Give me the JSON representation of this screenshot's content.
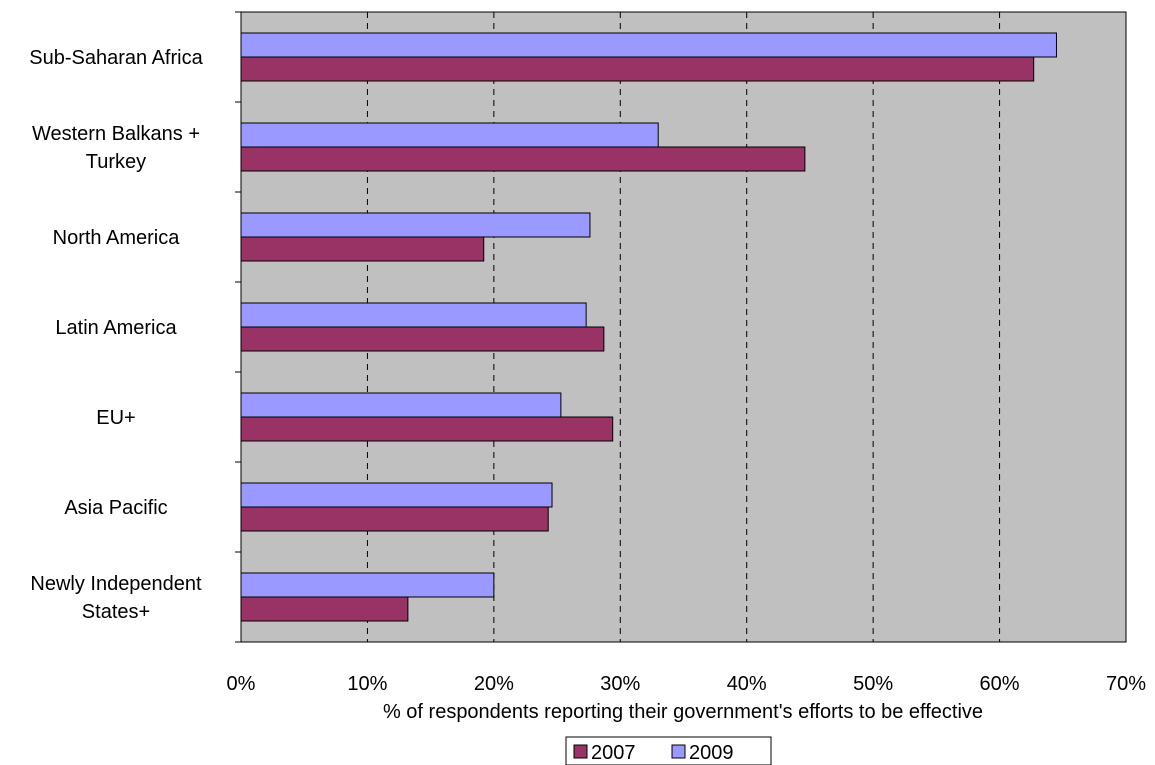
{
  "chart_data": {
    "type": "bar",
    "orientation": "horizontal",
    "categories": [
      [
        "Sub-Saharan Africa"
      ],
      [
        "Western Balkans +",
        "Turkey"
      ],
      [
        "North America"
      ],
      [
        "Latin America"
      ],
      [
        "EU+"
      ],
      [
        "Asia Pacific"
      ],
      [
        "Newly Independent",
        "States+"
      ]
    ],
    "series": [
      {
        "name": "2009",
        "color": "#9999ff",
        "values": [
          64.5,
          33.0,
          27.6,
          27.3,
          25.3,
          24.6,
          20.0
        ]
      },
      {
        "name": "2007",
        "color": "#993366",
        "values": [
          62.7,
          44.6,
          19.2,
          28.7,
          29.4,
          24.3,
          13.2
        ]
      }
    ],
    "xlabel": "% of respondents reporting their government's efforts to be effective",
    "xlim": [
      0,
      70
    ],
    "xticks": [
      0,
      10,
      20,
      30,
      40,
      50,
      60,
      70
    ],
    "tick_format": "percent",
    "grid": "vertical dashed",
    "plot_background": "#c0c0c0",
    "legend": {
      "placement": "bottom",
      "entries": [
        {
          "label": "2007",
          "color": "#993366"
        },
        {
          "label": "2009",
          "color": "#9999ff"
        }
      ]
    }
  }
}
